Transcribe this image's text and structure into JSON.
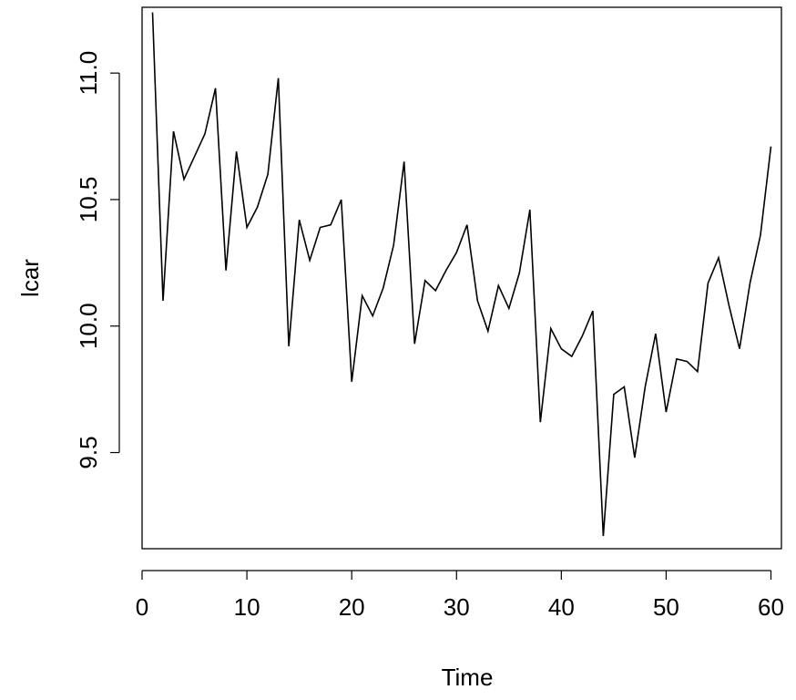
{
  "chart_data": {
    "type": "line",
    "title": "",
    "xlabel": "Time",
    "ylabel": "lcar",
    "xlim": [
      0,
      61
    ],
    "ylim": [
      9.12,
      11.26
    ],
    "x_ticks": [
      0,
      10,
      20,
      30,
      40,
      50,
      60
    ],
    "x_tick_labels": [
      "0",
      "10",
      "20",
      "30",
      "40",
      "50",
      "60"
    ],
    "y_ticks": [
      9.5,
      10.0,
      10.5,
      11.0
    ],
    "y_tick_labels": [
      "9.5",
      "10.0",
      "10.5",
      "11.0"
    ],
    "grid": false,
    "legend": false,
    "line_color": "#000000",
    "series": [
      {
        "x": [
          1,
          2,
          3,
          4,
          5,
          6,
          7,
          8,
          9,
          10,
          11,
          12,
          13,
          14,
          15,
          16,
          17,
          18,
          19,
          20,
          21,
          22,
          23,
          24,
          25,
          26,
          27,
          28,
          29,
          30,
          31,
          32,
          33,
          34,
          35,
          36,
          37,
          38,
          39,
          40,
          41,
          42,
          43,
          44,
          45,
          46,
          47,
          48,
          49,
          50,
          51,
          52,
          53,
          54,
          55,
          56,
          57,
          58,
          59,
          60
        ],
        "values": [
          11.24,
          10.1,
          10.77,
          10.58,
          10.67,
          10.76,
          10.94,
          10.22,
          10.69,
          10.39,
          10.47,
          10.6,
          10.98,
          9.92,
          10.42,
          10.26,
          10.39,
          10.4,
          10.5,
          9.78,
          10.12,
          10.04,
          10.15,
          10.32,
          10.65,
          9.93,
          10.18,
          10.14,
          10.22,
          10.29,
          10.4,
          10.1,
          9.98,
          10.16,
          10.07,
          10.21,
          10.46,
          9.62,
          9.99,
          9.91,
          9.88,
          9.96,
          10.06,
          9.17,
          9.73,
          9.76,
          9.48,
          9.76,
          9.97,
          9.66,
          9.87,
          9.86,
          9.82,
          10.17,
          10.27,
          10.08,
          9.91,
          10.17,
          10.36,
          10.71
        ]
      }
    ]
  }
}
